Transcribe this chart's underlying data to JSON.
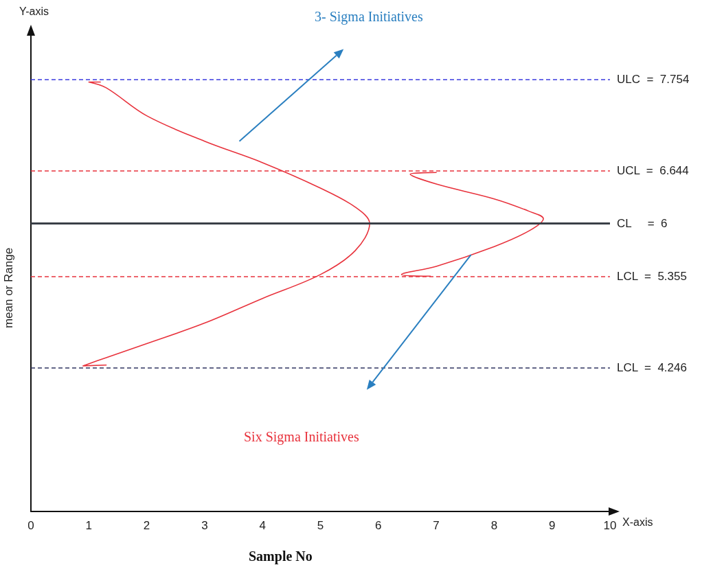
{
  "chart_data": {
    "type": "line",
    "xlabel": "Sample No",
    "ylabel": "mean or Range",
    "annotations": [
      "Y-axis",
      "X-axis",
      "3- Sigma Initiatives",
      "Six Sigma Initiatives"
    ],
    "series": [
      {
        "color": "#e8323c",
        "x": [
          1.2,
          1.0,
          1.3,
          2,
          3,
          4,
          5,
          5.6,
          5.85,
          5.6,
          5,
          4,
          3,
          2,
          1.3,
          0.9,
          1.3
        ],
        "values": [
          7.72,
          7.72,
          7.65,
          7.31,
          7.0,
          6.74,
          6.43,
          6.2,
          6.0,
          5.67,
          5.38,
          5.09,
          4.79,
          4.54,
          4.37,
          4.27,
          4.28
        ]
      },
      {
        "color": "#e8323c",
        "x": [
          7.0,
          6.55,
          7,
          8,
          8.6,
          8.85,
          8.6,
          8,
          7,
          6.4,
          6.9
        ],
        "values": [
          6.62,
          6.6,
          6.48,
          6.3,
          6.15,
          6.06,
          5.91,
          5.72,
          5.48,
          5.38,
          5.36
        ]
      }
    ],
    "xlim": [
      0,
      10
    ],
    "xticks": [
      0,
      1,
      2,
      3,
      4,
      5,
      6,
      7,
      8,
      9,
      10
    ],
    "ylim": [
      2.5,
      8.3
    ],
    "tick_labels": "x",
    "grid": false,
    "marker": "none",
    "line_style": "solid",
    "ref_lines": [
      {
        "axis": "y",
        "value": 7.754,
        "label": "ULC  =  7.754",
        "color": "#3a3ae0",
        "line_style": "dashed"
      },
      {
        "axis": "y",
        "value": 6.644,
        "label": "UCL  =  6.644",
        "color": "#e8323c",
        "line_style": "dashed"
      },
      {
        "axis": "y",
        "value": 6,
        "label": "CL     =  6",
        "color": "#3a3f47",
        "line_style": "solid"
      },
      {
        "axis": "y",
        "value": 5.355,
        "label": "LCL  =  5.355",
        "color": "#e8323c",
        "line_style": "dashed"
      },
      {
        "axis": "y",
        "value": 4.246,
        "label": "LCL  =  4.246",
        "color": "#2f3560",
        "line_style": "dashed"
      }
    ]
  }
}
